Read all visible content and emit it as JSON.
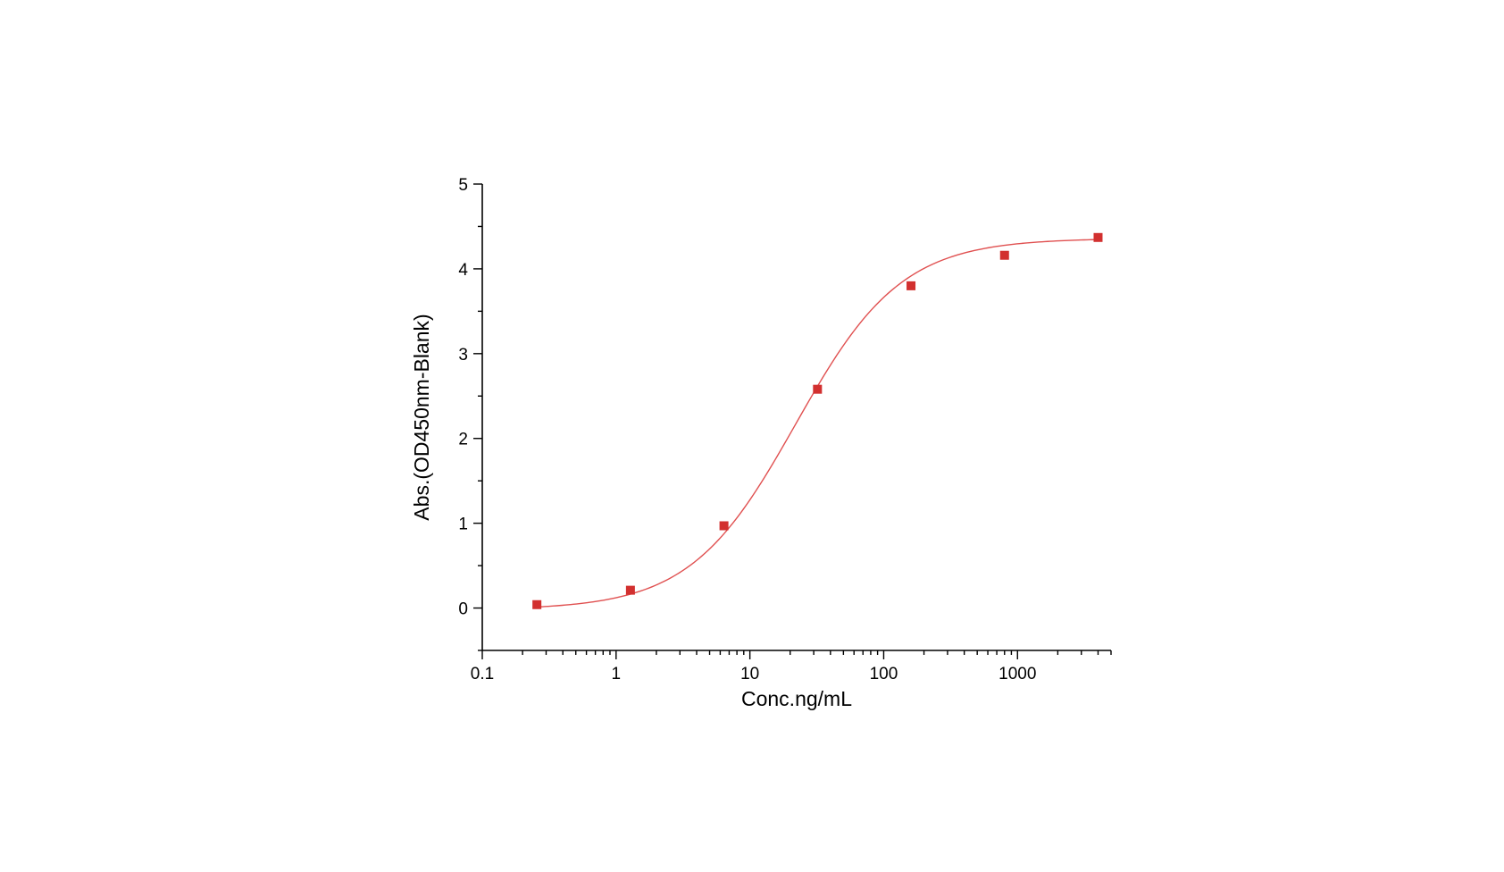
{
  "chart_data": {
    "type": "scatter",
    "xlabel": "Conc.ng/mL",
    "ylabel": "Abs.(OD450nm-Blank)",
    "x_scale": "log",
    "xlim": [
      0.1,
      5000
    ],
    "ylim": [
      -0.5,
      5
    ],
    "x_ticks": [
      "0.1",
      "1",
      "10",
      "100",
      "1000"
    ],
    "y_ticks": [
      "0",
      "1",
      "2",
      "3",
      "4",
      "5"
    ],
    "grid": false,
    "legend": "none",
    "marker_color": "#d2302f",
    "line_color": "#e05050",
    "series": [
      {
        "marker": "square",
        "x": [
          0.256,
          1.28,
          6.4,
          32,
          160,
          800,
          4000
        ],
        "y": [
          0.04,
          0.21,
          0.97,
          2.58,
          3.8,
          4.16,
          4.37
        ]
      }
    ],
    "fit": {
      "type": "4PL",
      "bottom": -0.02,
      "top": 4.36,
      "ec50": 22,
      "hill": 1.1
    }
  }
}
